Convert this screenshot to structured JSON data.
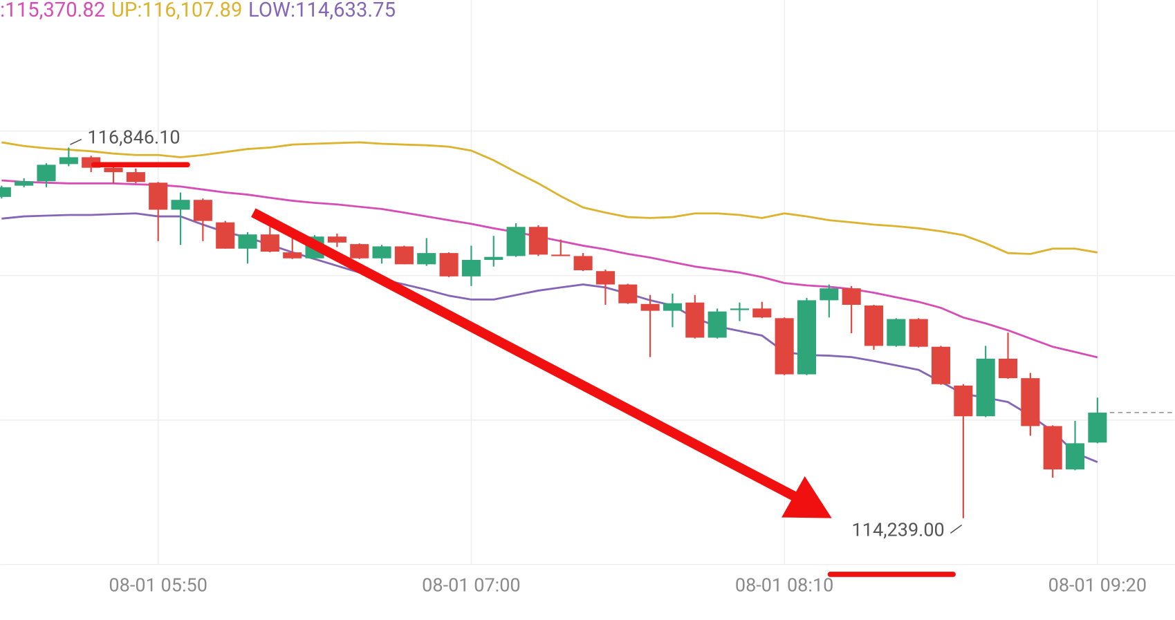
{
  "chart_data": {
    "type": "candlestick",
    "categories": [
      null,
      null,
      null,
      null,
      null,
      null,
      null,
      "08-01 05:50",
      null,
      null,
      null,
      null,
      null,
      null,
      null,
      null,
      null,
      null,
      null,
      null,
      null,
      "08-01 07:00",
      null,
      null,
      null,
      null,
      null,
      null,
      null,
      null,
      null,
      null,
      null,
      null,
      null,
      "08-01 08:10",
      null,
      null,
      null,
      null,
      null,
      null,
      null,
      null,
      null,
      null,
      null,
      null,
      null,
      "08-01 09:20"
    ],
    "open": [
      116499,
      116578,
      116609,
      116730,
      116778,
      116704,
      116673,
      116599,
      116409,
      116478,
      116320,
      116135,
      116235,
      116109,
      116067,
      116220,
      116167,
      116067,
      116151,
      116025,
      116104,
      115940,
      116056,
      116083,
      116288,
      116093,
      116083,
      115977,
      115883,
      115746,
      115698,
      115756,
      115509,
      115703,
      115714,
      115646,
      115251,
      115772,
      115856,
      115735,
      115451,
      115640,
      115445,
      115172,
      114956,
      115361,
      115224,
      114887,
      114582,
      114771
    ],
    "high": [
      116578,
      116630,
      116736,
      116846.1,
      116788,
      116736,
      116699,
      116604,
      116530,
      116488,
      116330,
      116251,
      116304,
      116209,
      116230,
      116241,
      116172,
      116162,
      116156,
      116209,
      116109,
      116156,
      116225,
      116314,
      116299,
      116199,
      116104,
      115988,
      115888,
      115809,
      115819,
      115809,
      115714,
      115756,
      115761,
      115651,
      115788,
      115883,
      115872,
      115740,
      115646,
      115646,
      115451,
      115182,
      115451,
      115545,
      115261,
      114892,
      114924,
      115087
    ],
    "low": [
      116488,
      116567,
      116567,
      116715,
      116673,
      116594,
      116594,
      116188,
      116162,
      116188,
      116135,
      116030,
      116109,
      116062,
      116062,
      116146,
      116062,
      116030,
      116025,
      116014,
      115935,
      115872,
      116009,
      116077,
      116083,
      116088,
      115977,
      115740,
      115746,
      115372,
      115582,
      115503,
      115503,
      115625,
      115646,
      115245,
      115245,
      115651,
      115540,
      115424,
      115445,
      115440,
      115177,
      114239,
      114950,
      115219,
      114819,
      114524,
      114576,
      114766
    ],
    "close": [
      116567,
      116609,
      116725,
      116778,
      116704,
      116673,
      116604,
      116409,
      116478,
      116330,
      116135,
      116235,
      116114,
      116067,
      116220,
      116178,
      116067,
      116151,
      116025,
      116104,
      115940,
      116056,
      116077,
      116288,
      116093,
      116088,
      115983,
      115883,
      115751,
      115698,
      115751,
      115509,
      115693,
      115714,
      115651,
      115251,
      115772,
      115856,
      115740,
      115451,
      115640,
      115445,
      115182,
      114956,
      115361,
      115224,
      114887,
      114582,
      114766,
      114982
    ],
    "up_color": "#2fa57a",
    "down_color": "#e0463d",
    "lines": [
      {
        "label": ":115,370.82",
        "color": "#d64db6",
        "values": [
          116615,
          116604,
          116599,
          116594,
          116594,
          116594,
          116588,
          116583,
          116572,
          116551,
          116530,
          116515,
          116493,
          116472,
          116457,
          116446,
          116430,
          116414,
          116388,
          116362,
          116335,
          116309,
          116278,
          116251,
          116220,
          116188,
          116156,
          116130,
          116098,
          116072,
          116040,
          116009,
          115988,
          115967,
          115935,
          115893,
          115877,
          115867,
          115851,
          115825,
          115793,
          115761,
          115719,
          115651,
          115609,
          115561,
          115503,
          115445,
          115408,
          115370.82
        ]
      },
      {
        "label": "UP:116,107.89",
        "color": "#ddb22c",
        "values": [
          116883,
          116857,
          116841,
          116831,
          116820,
          116804,
          116794,
          116794,
          116778,
          116794,
          116815,
          116836,
          116846,
          116867,
          116873,
          116878,
          116883,
          116873,
          116867,
          116862,
          116852,
          116825,
          116757,
          116673,
          116594,
          116504,
          116425,
          116388,
          116357,
          116351,
          116357,
          116383,
          116383,
          116372,
          116351,
          116383,
          116362,
          116335,
          116320,
          116304,
          116293,
          116278,
          116257,
          116230,
          116172,
          116104,
          116098,
          116135,
          116135,
          116107.89
        ]
      },
      {
        "label": "LOW:114,633.75",
        "color": "#8566b6",
        "values": [
          116346,
          116362,
          116367,
          116372,
          116372,
          116378,
          116383,
          116362,
          116362,
          116304,
          116251,
          116214,
          116162,
          116109,
          116062,
          116014,
          115967,
          115919,
          115883,
          115846,
          115804,
          115777,
          115777,
          115809,
          115840,
          115862,
          115883,
          115862,
          115819,
          115772,
          115735,
          115646,
          115588,
          115556,
          115524,
          115408,
          115387,
          115382,
          115372,
          115345,
          115314,
          115282,
          115198,
          115114,
          115087,
          115056,
          114961,
          114850,
          114698,
          114633.75
        ]
      }
    ],
    "annotations": [
      {
        "label": "116,846.10",
        "value": 116846.1
      },
      {
        "label": "114,239.00",
        "value": 114239
      }
    ],
    "ylim": [
      113523,
      117884
    ],
    "yticks": [
      116962,
      115945,
      114929,
      113913
    ],
    "grid": true
  }
}
